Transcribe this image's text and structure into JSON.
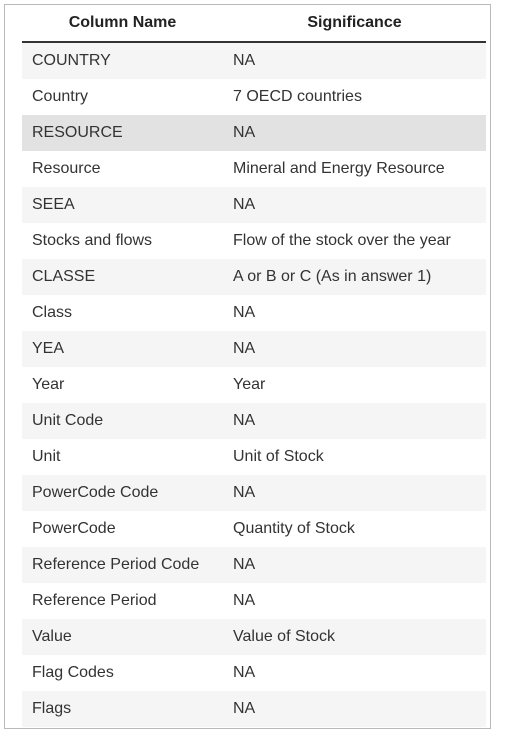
{
  "table": {
    "headers": [
      "Column Name",
      "Significance"
    ],
    "rows": [
      {
        "name": "COUNTRY",
        "significance": "NA"
      },
      {
        "name": "Country",
        "significance": "7 OECD countries"
      },
      {
        "name": "RESOURCE",
        "significance": "NA"
      },
      {
        "name": "Resource",
        "significance": "Mineral and Energy Resource"
      },
      {
        "name": "SEEA",
        "significance": "NA"
      },
      {
        "name": "Stocks and flows",
        "significance": "Flow of the stock over the year"
      },
      {
        "name": "CLASSE",
        "significance": "A or B or C (As in answer 1)"
      },
      {
        "name": "Class",
        "significance": "NA"
      },
      {
        "name": "YEA",
        "significance": "NA"
      },
      {
        "name": "Year",
        "significance": "Year"
      },
      {
        "name": "Unit Code",
        "significance": "NA"
      },
      {
        "name": "Unit",
        "significance": "Unit of Stock"
      },
      {
        "name": "PowerCode Code",
        "significance": "NA"
      },
      {
        "name": "PowerCode",
        "significance": "Quantity of Stock"
      },
      {
        "name": "Reference Period Code",
        "significance": "NA"
      },
      {
        "name": "Reference Period",
        "significance": "NA"
      },
      {
        "name": "Value",
        "significance": "Value of Stock"
      },
      {
        "name": "Flag Codes",
        "significance": "NA"
      },
      {
        "name": "Flags",
        "significance": "NA"
      }
    ]
  },
  "colors": {
    "row_odd": "#f5f5f5",
    "row_even": "#ffffff",
    "row_highlight": "#e2e2e2",
    "header_rule": "#333333",
    "frame_border": "#b9b9b9"
  }
}
